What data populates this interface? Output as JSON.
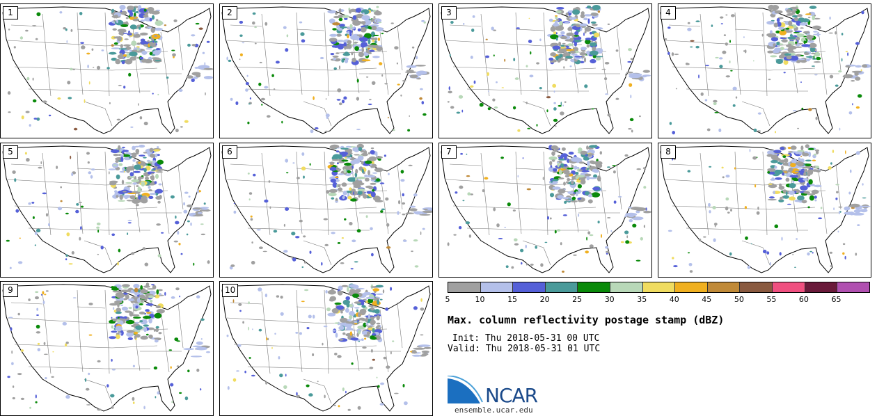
{
  "panels": [
    {
      "label": "1"
    },
    {
      "label": "2"
    },
    {
      "label": "3"
    },
    {
      "label": "4"
    },
    {
      "label": "5"
    },
    {
      "label": "6"
    },
    {
      "label": "7"
    },
    {
      "label": "8"
    },
    {
      "label": "9"
    },
    {
      "label": "10"
    }
  ],
  "colorbar": {
    "colors": [
      "#a0a0a0",
      "#b4c0ea",
      "#5560d8",
      "#4a9a9a",
      "#0a8a0a",
      "#b8d8b8",
      "#f0dc60",
      "#f0b020",
      "#c08a38",
      "#8a5a40",
      "#f05080",
      "#6a1a3a",
      "#b050b0"
    ],
    "ticks": [
      "5",
      "10",
      "15",
      "20",
      "25",
      "30",
      "35",
      "40",
      "45",
      "50",
      "55",
      "60",
      "65"
    ]
  },
  "title": "Max. column reflectivity postage stamp (dBZ)",
  "init": "Init: Thu 2018-05-31 00 UTC",
  "valid": "Valid: Thu 2018-05-31 01 UTC",
  "logo": {
    "text": "NCAR",
    "url": "ensemble.ucar.edu",
    "colors": {
      "blue": "#1b4a8a",
      "light": "#4aa0d8"
    }
  }
}
